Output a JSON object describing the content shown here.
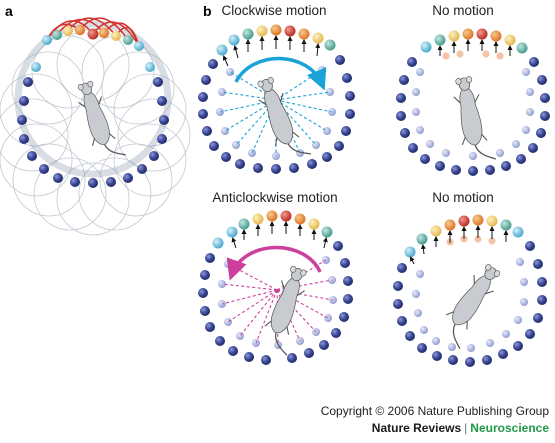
{
  "panels": {
    "a": {
      "letter": "a"
    },
    "b": {
      "letter": "b",
      "titles": {
        "clockwise": "Clockwise motion",
        "no_motion_top": "No motion",
        "anticlockwise": "Anticlockwise motion",
        "no_motion_bottom": "No motion"
      }
    }
  },
  "footer": {
    "copyright": "Copyright © 2006 Nature Publishing Group",
    "journal_name": "Nature Reviews",
    "separator": "|",
    "journal_section": "Neuroscience"
  },
  "colors": {
    "cell_blue": "#3a4796",
    "cell_light": "#a9b3dc",
    "cell_red": "#d9312b",
    "cell_orange": "#ee8a3a",
    "cell_yellow": "#f2cf6e",
    "cell_teal": "#5fb4a8",
    "cell_cyan": "#6fc5e0",
    "arrow_clockwise": "#1aa3d6",
    "arrow_anticlockwise": "#cc3f9c",
    "connection_red": "#d2322b",
    "ring_gray": "#8f9dae",
    "rat_gray": "#c8cbcf"
  },
  "icons": [
    "rat-icon",
    "clockwise-arrow-icon",
    "anticlockwise-arrow-icon"
  ]
}
